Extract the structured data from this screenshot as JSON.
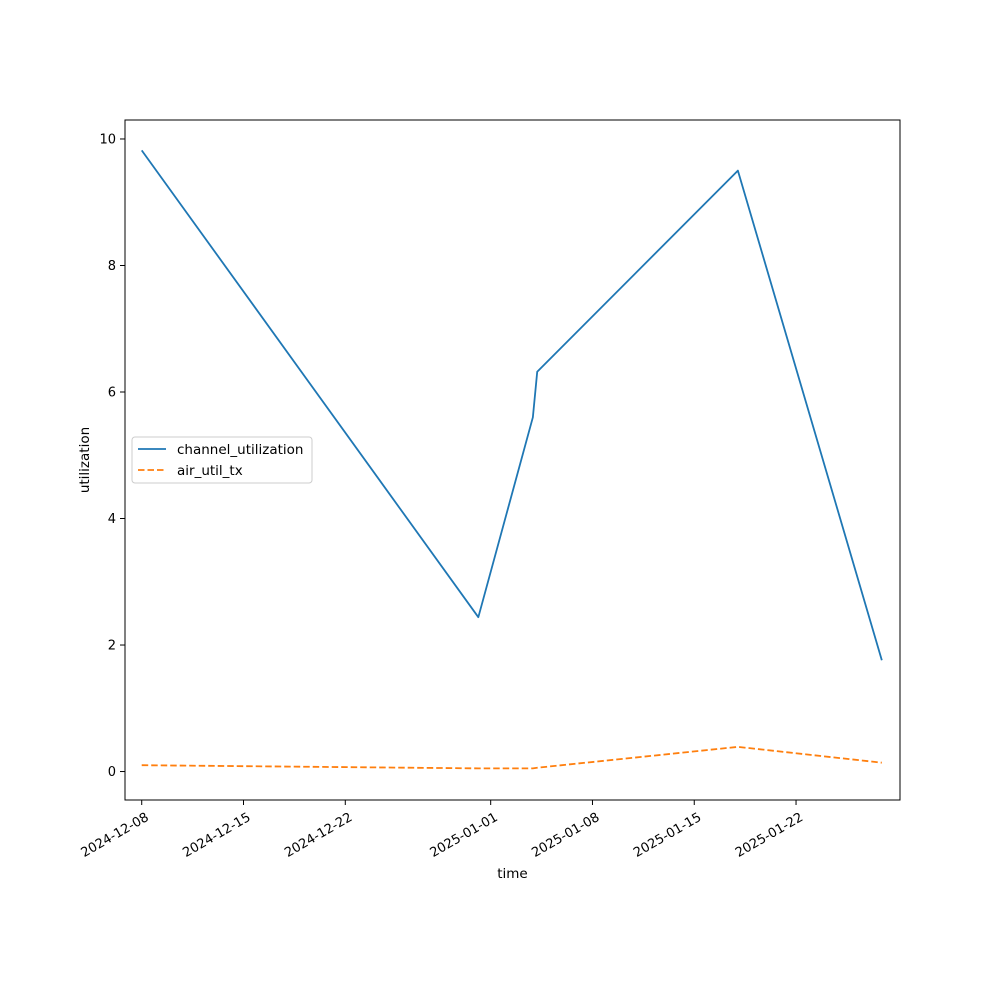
{
  "chart_data": {
    "type": "line",
    "title": "",
    "xlabel": "time",
    "ylabel": "utilization",
    "x_axis_type": "date",
    "xlim": [
      "2024-12-06T20:24",
      "2025-01-29T03:36"
    ],
    "ylim": [
      -0.45,
      10.3
    ],
    "x_ticks": [
      "2024-12-08",
      "2024-12-15",
      "2024-12-22",
      "2025-01-01",
      "2025-01-08",
      "2025-01-15",
      "2025-01-22"
    ],
    "y_ticks": [
      0,
      2,
      4,
      6,
      8,
      10
    ],
    "grid": false,
    "legend": {
      "position": "center-left"
    },
    "series": [
      {
        "name": "channel_utilization",
        "color": "#1f77b4",
        "linestyle": "solid",
        "points": [
          {
            "x": "2024-12-08T00:00",
            "y": 9.82
          },
          {
            "x": "2024-12-31T03:36",
            "y": 2.44
          },
          {
            "x": "2025-01-03T21:36",
            "y": 5.6
          },
          {
            "x": "2025-01-04T04:48",
            "y": 6.32
          },
          {
            "x": "2025-01-18T00:00",
            "y": 9.5
          },
          {
            "x": "2025-01-27T21:36",
            "y": 1.76
          }
        ]
      },
      {
        "name": "air_util_tx",
        "color": "#ff7f0e",
        "linestyle": "dashed",
        "points": [
          {
            "x": "2024-12-08T00:00",
            "y": 0.1
          },
          {
            "x": "2024-12-31T03:36",
            "y": 0.05
          },
          {
            "x": "2025-01-03T21:36",
            "y": 0.05
          },
          {
            "x": "2025-01-04T04:48",
            "y": 0.06
          },
          {
            "x": "2025-01-18T00:00",
            "y": 0.39
          },
          {
            "x": "2025-01-27T21:36",
            "y": 0.14
          }
        ]
      }
    ]
  }
}
